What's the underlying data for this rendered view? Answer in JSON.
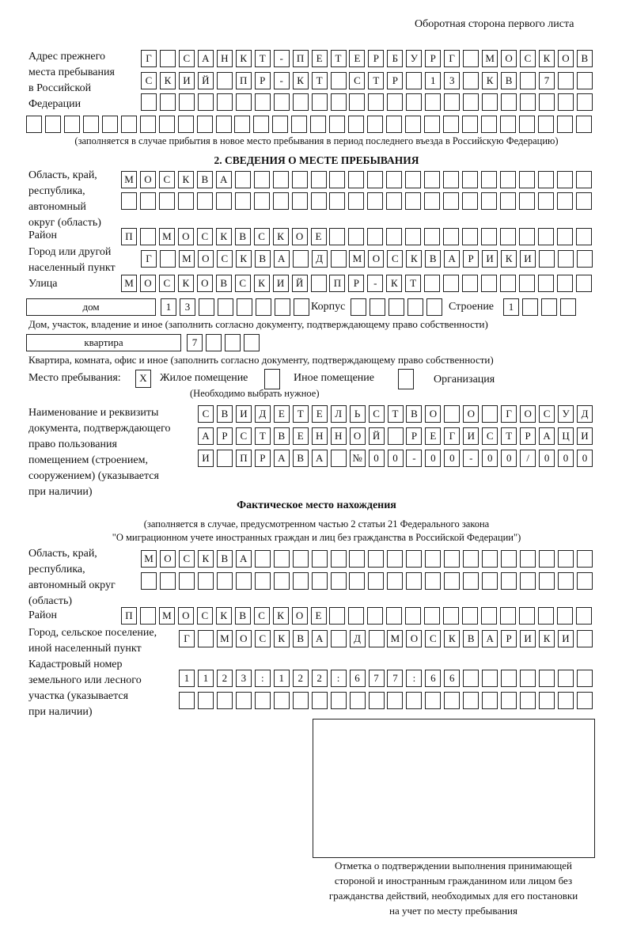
{
  "page_header": "Оборотная сторона первого листа",
  "prev_address": {
    "label": "Адрес прежнего\nместа пребывания\nв Российской\nФедерации",
    "rows": [
      "Г САНКТ-ПЕТЕРБУРГ МОСКОВ",
      "СКИЙ ПР-КТ СТР 13 КВ 7",
      "",
      ""
    ],
    "note": "(заполняется в случае прибытия в новое место пребывания в период последнего въезда в Российскую Федерацию)"
  },
  "section2": {
    "title": "2. СВЕДЕНИЯ О МЕСТЕ ПРЕБЫВАНИЯ",
    "region_label": "Область, край,\nреспублика,\nавтономный\nокруг (область)",
    "region_rows": [
      "МОСКВА",
      ""
    ],
    "district_label": "Район",
    "district_row": "П МОСКВСКОЕ",
    "city_label": "Город или другой\nнаселенный пункт",
    "city_row": "Г МОСКВА Д МОСКВАРИКИ",
    "street_label": "Улица",
    "street_row": "МОСКОВСКИЙ ПР-КТ",
    "house_type": "дом",
    "house_number": "13",
    "korpus_label": "Корпус",
    "korpus": "",
    "building_label": "Строение",
    "building": "1",
    "house_caption": "Дом, участок, владение и иное (заполнить согласно документу, подтверждающему право собственности)",
    "apartment_type": "квартира",
    "apartment_number": "7",
    "apartment_caption": "Квартира, комната, офис и иное (заполнить согласно документу, подтверждающему право собственности)",
    "stay_place_label": "Место пребывания:",
    "stay_options": [
      {
        "label": "Жилое помещение",
        "mark": "X",
        "checked": true
      },
      {
        "label": "Иное помещение",
        "mark": "",
        "checked": false
      },
      {
        "label": "Организация",
        "mark": "",
        "checked": false
      }
    ],
    "stay_note": "(Необходимо выбрать нужное)",
    "doc_label": "Наименование и реквизиты\nдокумента, подтверждающего\nправо пользования\nпомещением (строением,\nсооружением) (указывается\nпри наличии)",
    "doc_rows": [
      "СВИДЕТЕЛЬСТВО О ГОСУД",
      "АРСТВЕННОЙ РЕГИСТРАЦИ",
      "И ПРАВА №00-00-00/000"
    ]
  },
  "actual": {
    "title": "Фактическое место нахождения",
    "note1": "(заполняется в случае, предусмотренном частью 2 статьи 21 Федерального закона",
    "note2": "\"О миграционном учете иностранных граждан и лиц без гражданства в Российской Федерации\")",
    "region_label": "Область, край,\nреспублика,\nавтономный округ\n(область)",
    "region_rows": [
      "МОСКВА",
      ""
    ],
    "district_label": "Район",
    "district_row": "П МОСКВСКОЕ",
    "city_label": "Город, сельское поселение,\nиной населенный пункт",
    "city_row": "Г МОСКВА Д МОСКВАРИКИ",
    "cadastral_label": "Кадастровый номер\nземельного или лесного\nучастка (указывается\nпри наличии)",
    "cadastral_rows": [
      "1123:122:677:66",
      ""
    ]
  },
  "confirmation_caption": "Отметка о подтверждении выполнения принимающей\nстороной и иностранным гражданином или лицом без\nгражданства действий, необходимых для его постановки\nна учет по месту пребывания"
}
